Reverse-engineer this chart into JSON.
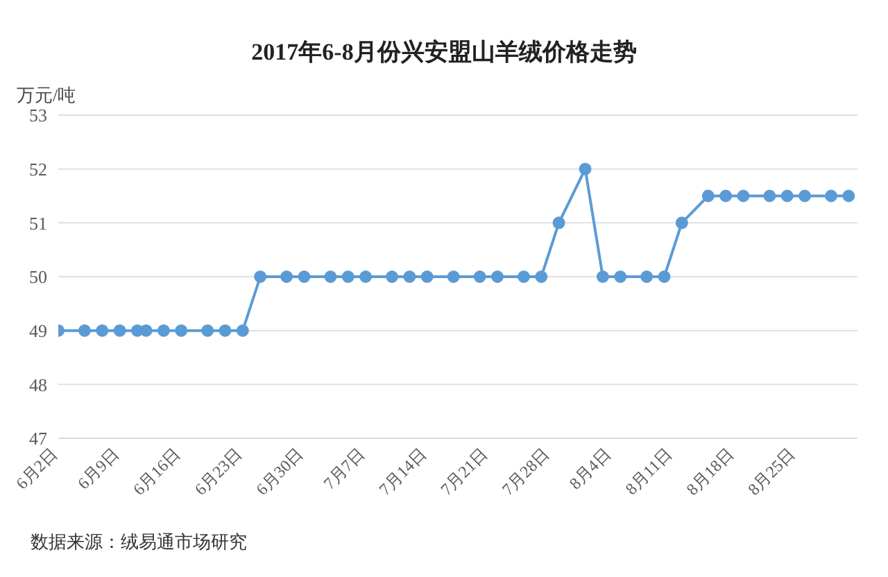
{
  "chart_data": {
    "type": "line",
    "title": "2017年6-8月份兴安盟山羊绒价格走势",
    "ylabel": "万元/吨",
    "annotations": [
      "数据来源：绒易通市场研究"
    ],
    "x": [
      "2017-06-02",
      "2017-06-05",
      "2017-06-07",
      "2017-06-09",
      "2017-06-11",
      "2017-06-12",
      "2017-06-14",
      "2017-06-16",
      "2017-06-19",
      "2017-06-21",
      "2017-06-23",
      "2017-06-25",
      "2017-06-28",
      "2017-06-30",
      "2017-07-03",
      "2017-07-05",
      "2017-07-07",
      "2017-07-10",
      "2017-07-12",
      "2017-07-14",
      "2017-07-17",
      "2017-07-20",
      "2017-07-22",
      "2017-07-25",
      "2017-07-27",
      "2017-07-29",
      "2017-08-01",
      "2017-08-03",
      "2017-08-05",
      "2017-08-08",
      "2017-08-10",
      "2017-08-12",
      "2017-08-15",
      "2017-08-17",
      "2017-08-19",
      "2017-08-22",
      "2017-08-24",
      "2017-08-26",
      "2017-08-29",
      "2017-08-31"
    ],
    "series": [
      {
        "color": "#5b9bd5",
        "values": [
          49,
          49,
          49,
          49,
          49,
          49,
          49,
          49,
          49,
          49,
          49,
          50,
          50,
          50,
          50,
          50,
          50,
          50,
          50,
          50,
          50,
          50,
          50,
          50,
          50,
          51,
          52,
          50,
          50,
          50,
          50,
          51,
          51.5,
          51.5,
          51.5,
          51.5,
          51.5,
          51.5,
          51.5,
          51.5
        ]
      }
    ],
    "xlim": [
      "2017-06-02",
      "2017-09-01"
    ],
    "xticks": [
      {
        "value": "2017-06-02",
        "label": "6月2日"
      },
      {
        "value": "2017-06-09",
        "label": "6月9日"
      },
      {
        "value": "2017-06-16",
        "label": "6月16日"
      },
      {
        "value": "2017-06-23",
        "label": "6月23日"
      },
      {
        "value": "2017-06-30",
        "label": "6月30日"
      },
      {
        "value": "2017-07-07",
        "label": "7月7日"
      },
      {
        "value": "2017-07-14",
        "label": "7月14日"
      },
      {
        "value": "2017-07-21",
        "label": "7月21日"
      },
      {
        "value": "2017-07-28",
        "label": "7月28日"
      },
      {
        "value": "2017-08-04",
        "label": "8月4日"
      },
      {
        "value": "2017-08-11",
        "label": "8月11日"
      },
      {
        "value": "2017-08-18",
        "label": "8月18日"
      },
      {
        "value": "2017-08-25",
        "label": "8月25日"
      }
    ],
    "ylim": [
      47,
      53
    ],
    "yticks": [
      47,
      48,
      49,
      50,
      51,
      52,
      53
    ],
    "grid": "y",
    "marker": "circle",
    "line_style": "solid"
  }
}
